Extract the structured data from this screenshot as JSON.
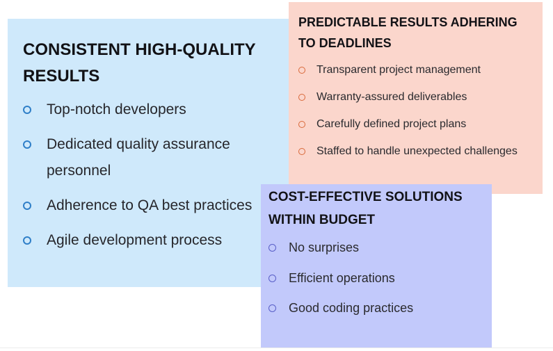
{
  "cards": {
    "quality": {
      "title": "CONSISTENT HIGH-QUALITY RESULTS",
      "items": [
        "Top-notch developers",
        "Dedicated quality assurance personnel",
        "Adherence to QA best practices",
        "Agile development process"
      ],
      "background": "#cfe9fb",
      "bullet_color": "#2f7fc8"
    },
    "predictable": {
      "title": "PREDICTABLE RESULTS ADHERING TO DEADLINES",
      "items": [
        "Transparent project management",
        "Warranty-assured deliverables",
        "Carefully defined project plans",
        "Staffed to handle unexpected challenges"
      ],
      "background": "#fbd6cc",
      "bullet_color": "#d9693a"
    },
    "cost": {
      "title": "COST-EFFECTIVE SOLUTIONS WITHIN BUDGET",
      "items": [
        "No surprises",
        "Efficient operations",
        "Good coding practices"
      ],
      "background": "#c2c9fb",
      "bullet_color": "#5a5fc8"
    }
  }
}
